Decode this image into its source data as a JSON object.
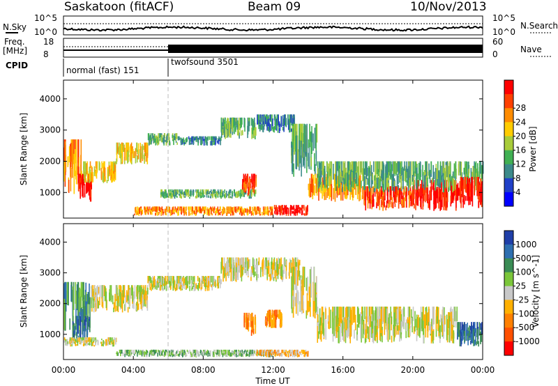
{
  "header": {
    "station": "Saskatoon (fitACF)",
    "beam": "Beam 09",
    "date": "10/Nov/2013"
  },
  "noise_panel": {
    "left_label": "N.Sky",
    "right_label": "N.Search",
    "left_ticks": [
      "10^5",
      "10^0"
    ],
    "right_ticks": [
      "10^5",
      "10^0"
    ]
  },
  "freq_panel": {
    "left_label_line1": "Freq.",
    "left_label_line2": "[MHz]",
    "right_label": "Nave",
    "left_ticks": [
      "18",
      "8"
    ],
    "right_ticks": [
      "60",
      "0"
    ]
  },
  "cpid_panel": {
    "label": "CPID",
    "modes": [
      {
        "name": "normal (fast) 151",
        "start_hour": 0,
        "end_hour": 6
      },
      {
        "name": "twofsound 3501",
        "start_hour": 6,
        "end_hour": 24
      }
    ]
  },
  "x_axis": {
    "label": "Time UT",
    "tick_labels": [
      "00:00",
      "04:00",
      "08:00",
      "12:00",
      "16:00",
      "20:00",
      "00:00"
    ]
  },
  "chart_data": [
    {
      "type": "heatmap",
      "quantity": "Power",
      "ylabel": "Slant Range [km]",
      "y_tick_labels": [
        "1000",
        "2000",
        "3000",
        "4000"
      ],
      "ylim": [
        180,
        4600
      ],
      "xlim": [
        0,
        24
      ],
      "colorbar": {
        "label": "Power [dB]",
        "tick_labels": [
          "4",
          "8",
          "12",
          "16",
          "20",
          "24",
          "28"
        ],
        "colors": [
          "#0000ff",
          "#2040c8",
          "#3c8a8a",
          "#41b053",
          "#a8cc3a",
          "#ffcc00",
          "#ff8c00",
          "#ff4000",
          "#ff0000"
        ]
      },
      "echo_regions": [
        {
          "t0": 0.0,
          "t1": 1.0,
          "r0": 900,
          "r1": 2700,
          "level": 6
        },
        {
          "t0": 0.8,
          "t1": 1.6,
          "r0": 700,
          "r1": 1600,
          "level": 8
        },
        {
          "t0": 1.0,
          "t1": 3.0,
          "r0": 1300,
          "r1": 2000,
          "level": 5
        },
        {
          "t0": 3.0,
          "t1": 4.8,
          "r0": 1900,
          "r1": 2600,
          "level": 5
        },
        {
          "t0": 4.8,
          "t1": 6.5,
          "r0": 2500,
          "r1": 2900,
          "level": 3
        },
        {
          "t0": 6.5,
          "t1": 9.0,
          "r0": 2500,
          "r1": 2800,
          "level": 2
        },
        {
          "t0": 9.0,
          "t1": 11.0,
          "r0": 2700,
          "r1": 3400,
          "level": 3
        },
        {
          "t0": 11.0,
          "t1": 13.2,
          "r0": 2900,
          "r1": 3500,
          "level": 2
        },
        {
          "t0": 13.0,
          "t1": 14.5,
          "r0": 1500,
          "r1": 3200,
          "level": 3
        },
        {
          "t0": 4.0,
          "t1": 12.0,
          "r0": 250,
          "r1": 550,
          "level": 6
        },
        {
          "t0": 12.0,
          "t1": 14.0,
          "r0": 250,
          "r1": 600,
          "level": 8
        },
        {
          "t0": 14.0,
          "t1": 17.0,
          "r0": 700,
          "r1": 1600,
          "level": 6
        },
        {
          "t0": 17.0,
          "t1": 20.0,
          "r0": 400,
          "r1": 1200,
          "level": 7
        },
        {
          "t0": 20.0,
          "t1": 22.5,
          "r0": 400,
          "r1": 1400,
          "level": 8
        },
        {
          "t0": 14.5,
          "t1": 24.0,
          "r0": 1000,
          "r1": 2000,
          "level": 3
        },
        {
          "t0": 22.5,
          "t1": 24.0,
          "r0": 500,
          "r1": 1500,
          "level": 8
        },
        {
          "t0": 5.5,
          "t1": 11.0,
          "r0": 800,
          "r1": 1100,
          "level": 3
        },
        {
          "t0": 10.2,
          "t1": 11.0,
          "r0": 900,
          "r1": 1600,
          "level": 7
        }
      ]
    },
    {
      "type": "heatmap",
      "quantity": "Velocity",
      "ylabel": "Slant Range [km]",
      "y_tick_labels": [
        "1000",
        "2000",
        "3000",
        "4000"
      ],
      "ylim": [
        180,
        4600
      ],
      "xlim": [
        0,
        24
      ],
      "colorbar": {
        "label": "Velocity [m s^-1]",
        "tick_labels": [
          "1000",
          "500",
          "100",
          "25",
          "-25",
          "-100",
          "-500",
          "-1000"
        ],
        "colors": [
          "#1f3fa8",
          "#2e6fb0",
          "#3a8c55",
          "#7bc63a",
          "#c8c8c8",
          "#ffb000",
          "#ff8000",
          "#ff5000",
          "#ff0000"
        ]
      },
      "echo_regions": [
        {
          "t0": 0.0,
          "t1": 1.5,
          "r0": 1100,
          "r1": 2700,
          "level": 2
        },
        {
          "t0": 1.5,
          "t1": 4.8,
          "r0": 1700,
          "r1": 2600,
          "level": 4
        },
        {
          "t0": 4.8,
          "t1": 9.0,
          "r0": 2400,
          "r1": 2900,
          "level": 4
        },
        {
          "t0": 9.0,
          "t1": 13.5,
          "r0": 2700,
          "r1": 3500,
          "level": 4
        },
        {
          "t0": 13.0,
          "t1": 14.5,
          "r0": 1500,
          "r1": 3200,
          "level": 4
        },
        {
          "t0": 10.3,
          "t1": 11.0,
          "r0": 900,
          "r1": 1700,
          "level": 6
        },
        {
          "t0": 11.5,
          "t1": 12.5,
          "r0": 1200,
          "r1": 1800,
          "level": 6
        },
        {
          "t0": 3.0,
          "t1": 12.0,
          "r0": 250,
          "r1": 500,
          "level": 3
        },
        {
          "t0": 11.0,
          "t1": 14.0,
          "r0": 250,
          "r1": 500,
          "level": 5
        },
        {
          "t0": 14.5,
          "t1": 22.5,
          "r0": 700,
          "r1": 1900,
          "level": 4
        },
        {
          "t0": 22.5,
          "t1": 24.0,
          "r0": 600,
          "r1": 1400,
          "level": 1
        },
        {
          "t0": 0.5,
          "t1": 1.5,
          "r0": 800,
          "r1": 1600,
          "level": 1
        },
        {
          "t0": 0.0,
          "t1": 3.0,
          "r0": 600,
          "r1": 900,
          "level": 4
        }
      ]
    }
  ]
}
